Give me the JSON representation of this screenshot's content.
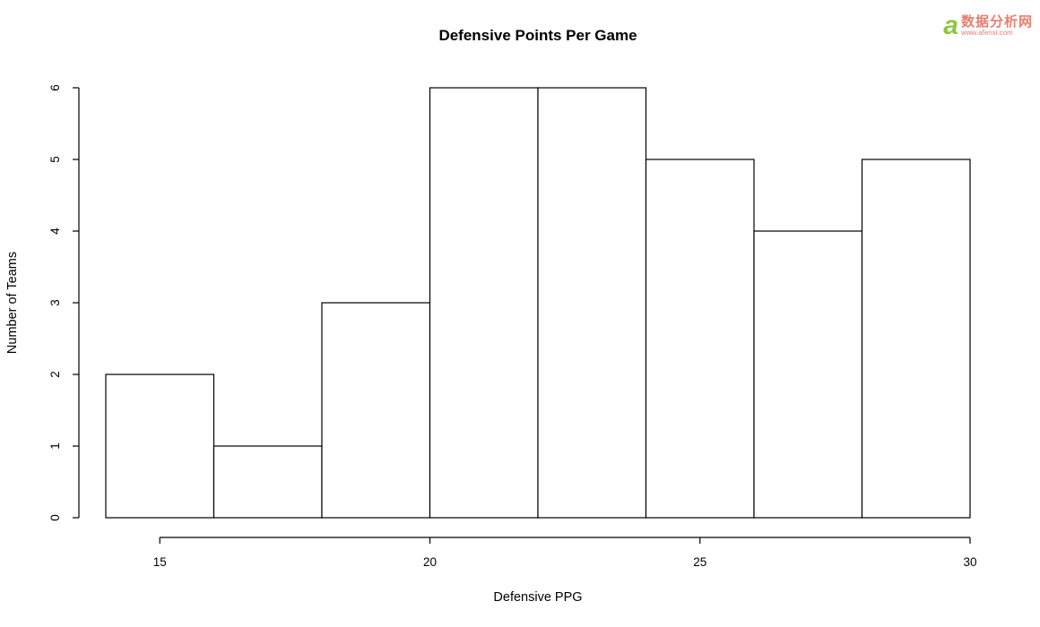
{
  "title": "Defensive Points Per Game",
  "watermark": {
    "logo_text": "a",
    "site_name": "数据分析网",
    "site_url": "www.afenxi.com",
    "icon_color": "#8DC63F",
    "text_color": "#E97E6F"
  },
  "chart_data": {
    "type": "bar",
    "subtype": "histogram",
    "title": "Defensive Points Per Game",
    "xlabel": "Defensive PPG",
    "ylabel": "Number of Teams",
    "bin_edges": [
      14,
      16,
      18,
      20,
      22,
      24,
      26,
      28,
      30
    ],
    "counts": [
      2,
      1,
      3,
      6,
      6,
      5,
      4,
      5
    ],
    "xticks": [
      15,
      20,
      25,
      30
    ],
    "yticks": [
      0,
      1,
      2,
      3,
      4,
      5,
      6
    ],
    "xlim": [
      14,
      30
    ],
    "ylim": [
      0,
      6
    ],
    "bar_fill": "#ffffff",
    "bar_stroke": "#000000",
    "axis_color": "#000000",
    "grid": false,
    "legend": "none"
  }
}
